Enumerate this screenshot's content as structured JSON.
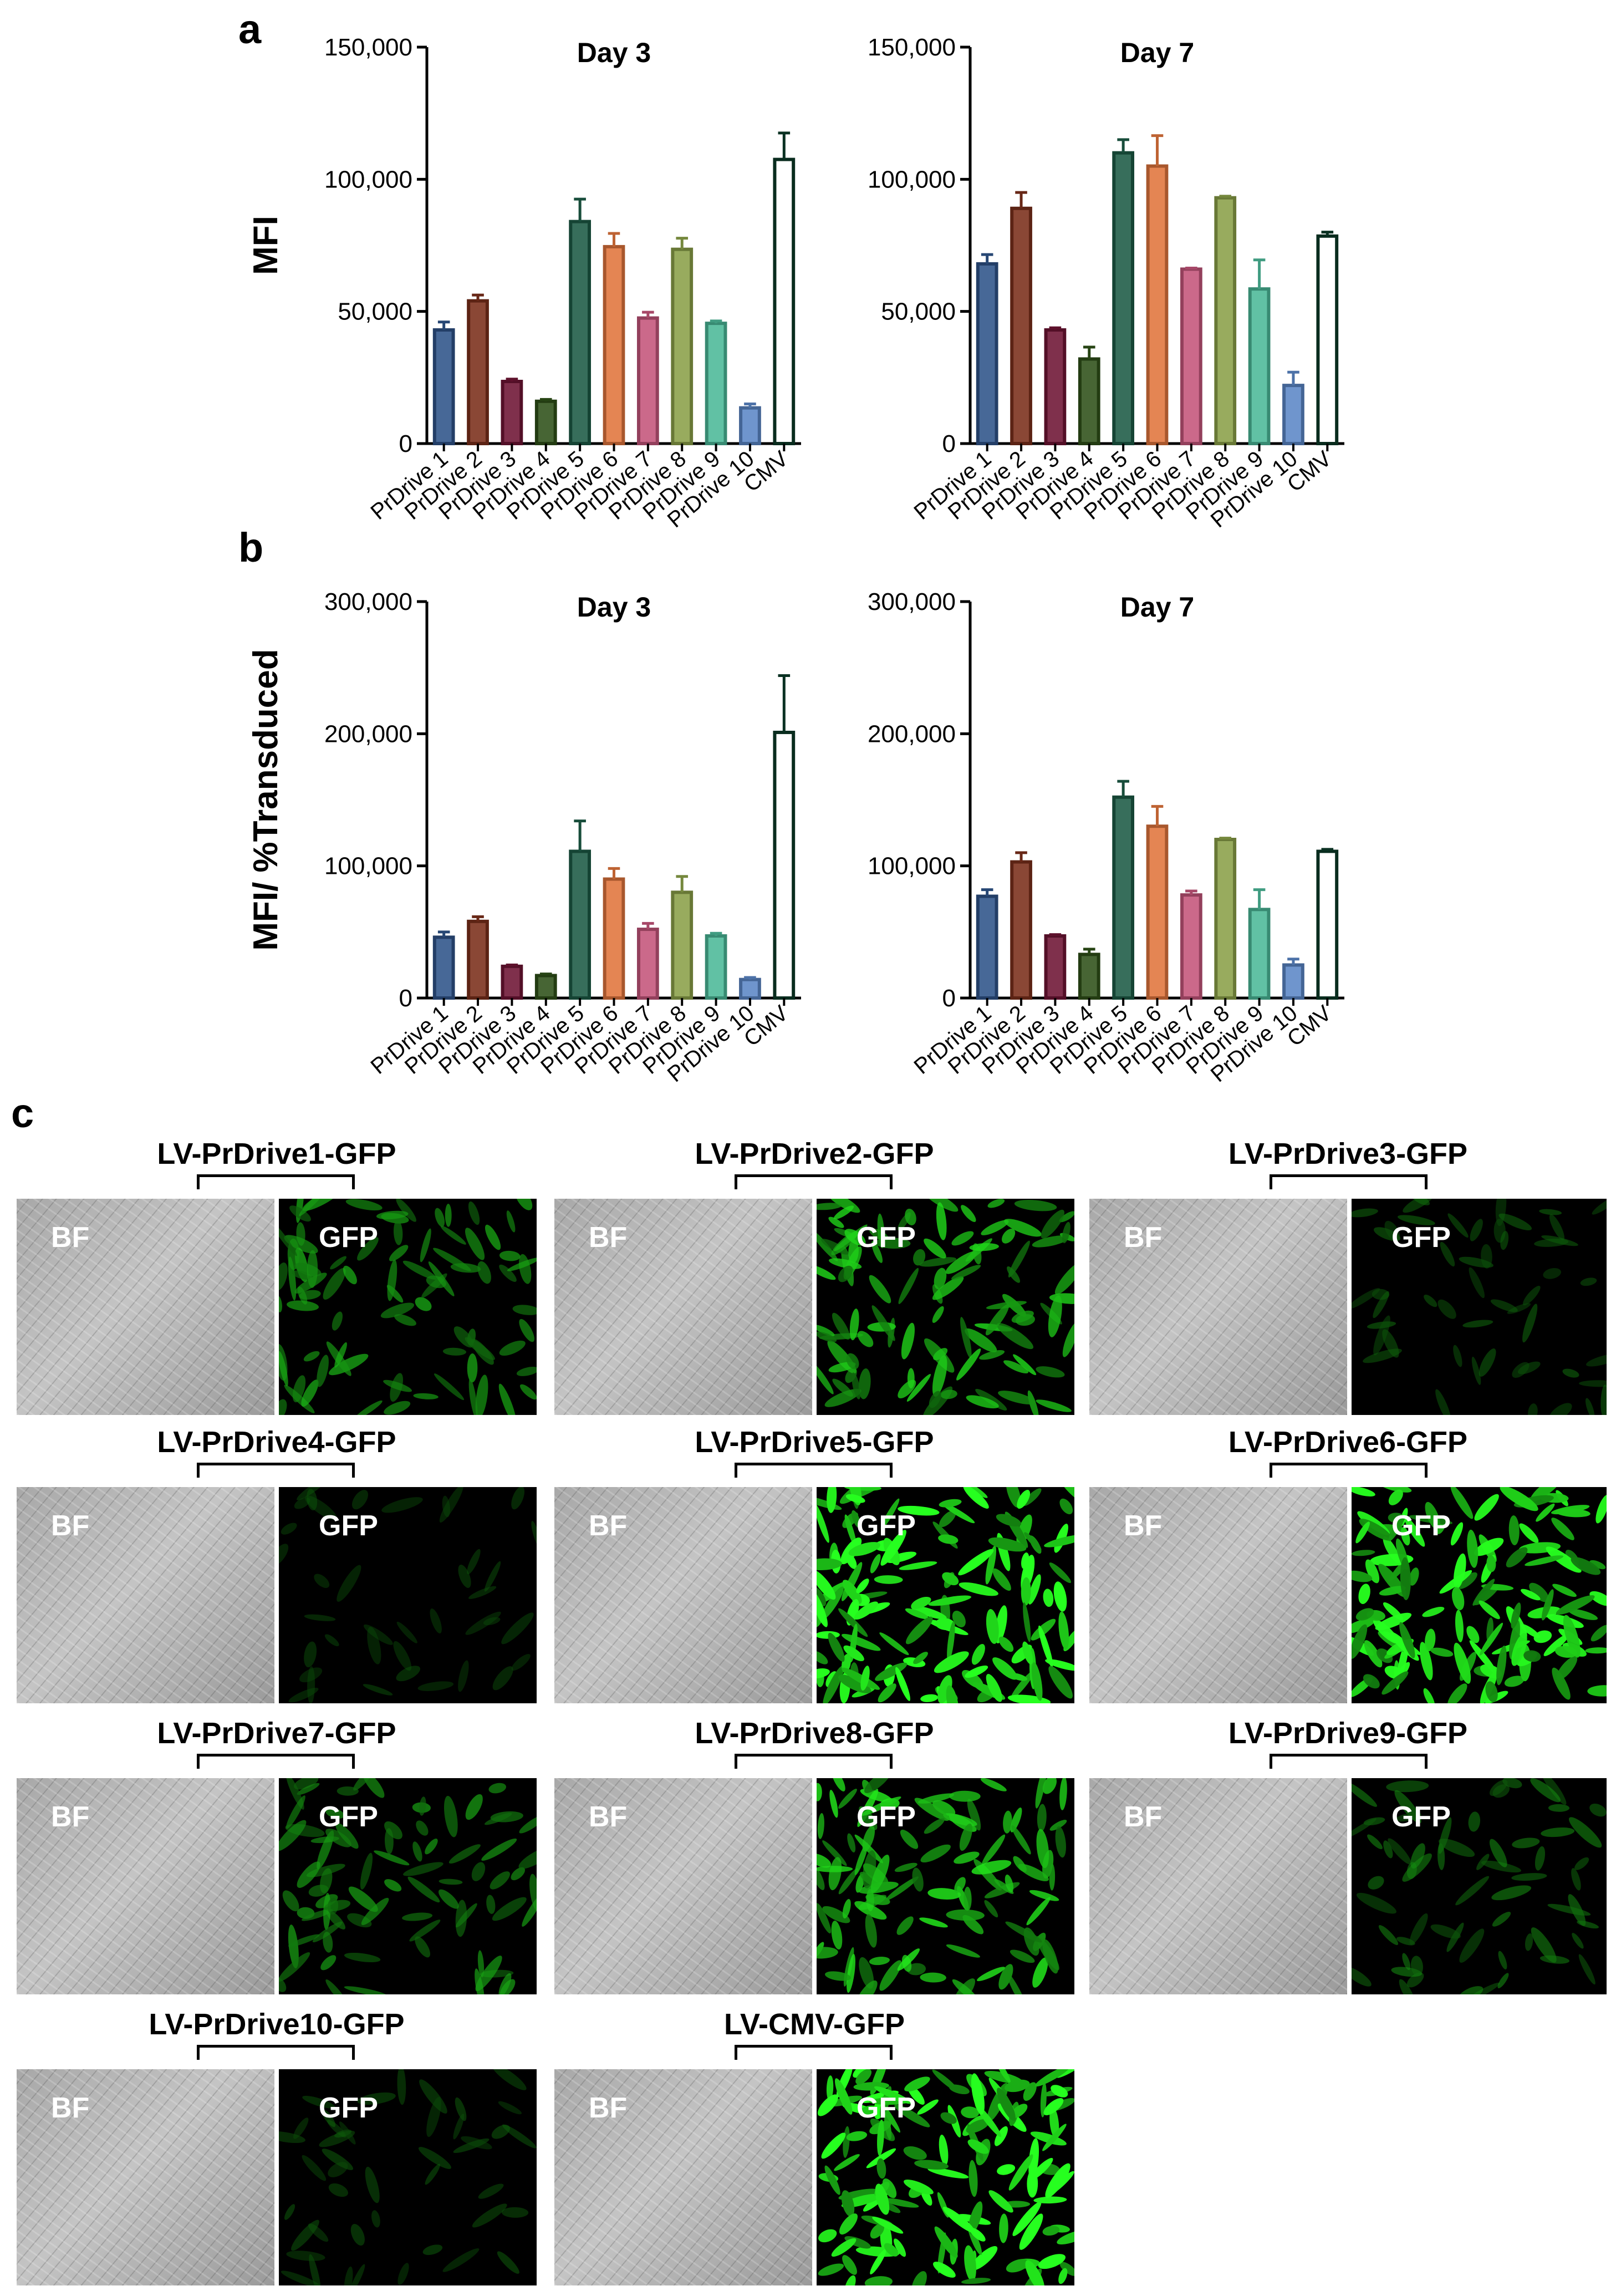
{
  "panels": {
    "a": "a",
    "b": "b",
    "c": "c"
  },
  "chart_data": [
    {
      "id": "a-day3",
      "type": "bar",
      "title": "Day 3",
      "ylabel": "MFI",
      "categories": [
        "PrDrive 1",
        "PrDrive 2",
        "PrDrive 3",
        "PrDrive 4",
        "PrDrive 5",
        "PrDrive 6",
        "PrDrive 7",
        "PrDrive 8",
        "PrDrive 9",
        "PrDrive 10",
        "CMV"
      ],
      "values": [
        43000,
        54000,
        23500,
        16000,
        84000,
        74500,
        47500,
        73500,
        45500,
        13500,
        107500
      ],
      "errors": [
        3000,
        2200,
        900,
        700,
        8500,
        5000,
        2200,
        4200,
        900,
        1500,
        10000
      ],
      "ylim": [
        0,
        150000
      ],
      "yticks": [
        0,
        50000,
        100000,
        150000
      ],
      "ytick_labels": [
        "0",
        "50,000",
        "100,000",
        "150,000"
      ]
    },
    {
      "id": "a-day7",
      "type": "bar",
      "title": "Day 7",
      "ylabel": "",
      "categories": [
        "PrDrive 1",
        "PrDrive 2",
        "PrDrive 3",
        "PrDrive 4",
        "PrDrive 5",
        "PrDrive 6",
        "PrDrive 7",
        "PrDrive 8",
        "PrDrive 9",
        "PrDrive 10",
        "CMV"
      ],
      "values": [
        68000,
        89000,
        43000,
        32000,
        110000,
        105000,
        66000,
        93000,
        58500,
        22000,
        78500
      ],
      "errors": [
        3500,
        6000,
        800,
        4500,
        5000,
        11500,
        400,
        600,
        11000,
        5000,
        1500
      ],
      "ylim": [
        0,
        150000
      ],
      "yticks": [
        0,
        50000,
        100000,
        150000
      ],
      "ytick_labels": [
        "0",
        "50,000",
        "100,000",
        "150,000"
      ]
    },
    {
      "id": "b-day3",
      "type": "bar",
      "title": "Day 3",
      "ylabel": "MFI/ %Transduced",
      "categories": [
        "PrDrive 1",
        "PrDrive 2",
        "PrDrive 3",
        "PrDrive 4",
        "PrDrive 5",
        "PrDrive 6",
        "PrDrive 7",
        "PrDrive 8",
        "PrDrive 9",
        "PrDrive 10",
        "CMV"
      ],
      "values": [
        46000,
        58000,
        24000,
        17000,
        111000,
        90000,
        52000,
        80000,
        47000,
        14000,
        201000
      ],
      "errors": [
        4000,
        3500,
        1000,
        1200,
        23000,
        8000,
        4500,
        12000,
        2000,
        1500,
        43000
      ],
      "ylim": [
        0,
        300000
      ],
      "yticks": [
        0,
        100000,
        200000,
        300000
      ],
      "ytick_labels": [
        "0",
        "100,000",
        "200,000",
        "300,000"
      ]
    },
    {
      "id": "b-day7",
      "type": "bar",
      "title": "Day 7",
      "ylabel": "",
      "categories": [
        "PrDrive 1",
        "PrDrive 2",
        "PrDrive 3",
        "PrDrive 4",
        "PrDrive 5",
        "PrDrive 6",
        "PrDrive 7",
        "PrDrive 8",
        "PrDrive 9",
        "PrDrive 10",
        "CMV"
      ],
      "values": [
        77000,
        103000,
        47000,
        33000,
        152000,
        130000,
        78000,
        120000,
        67000,
        25000,
        111000
      ],
      "errors": [
        5000,
        7000,
        1000,
        4000,
        12000,
        15000,
        3000,
        1000,
        15000,
        4500,
        1500
      ],
      "ylim": [
        0,
        300000
      ],
      "yticks": [
        0,
        100000,
        200000,
        300000
      ],
      "ytick_labels": [
        "0",
        "100,000",
        "200,000",
        "300,000"
      ]
    }
  ],
  "colors": [
    "#2e5389",
    "#7a2e1a",
    "#6e1434",
    "#2e5018",
    "#1c5a45",
    "#e0743c",
    "#c4557a",
    "#8aa048",
    "#4bb898",
    "#5b86c6",
    "#0c3a28"
  ],
  "micrographs": [
    {
      "title": "LV-PrDrive1-GFP",
      "bf": "BF",
      "gfp": "GFP",
      "gfp_intensity": 0.55
    },
    {
      "title": "LV-PrDrive2-GFP",
      "bf": "BF",
      "gfp": "GFP",
      "gfp_intensity": 0.7
    },
    {
      "title": "LV-PrDrive3-GFP",
      "bf": "BF",
      "gfp": "GFP",
      "gfp_intensity": 0.25
    },
    {
      "title": "LV-PrDrive4-GFP",
      "bf": "BF",
      "gfp": "GFP",
      "gfp_intensity": 0.15
    },
    {
      "title": "LV-PrDrive5-GFP",
      "bf": "BF",
      "gfp": "GFP",
      "gfp_intensity": 1.0
    },
    {
      "title": "LV-PrDrive6-GFP",
      "bf": "BF",
      "gfp": "GFP",
      "gfp_intensity": 0.95
    },
    {
      "title": "LV-PrDrive7-GFP",
      "bf": "BF",
      "gfp": "GFP",
      "gfp_intensity": 0.5
    },
    {
      "title": "LV-PrDrive8-GFP",
      "bf": "BF",
      "gfp": "GFP",
      "gfp_intensity": 0.75
    },
    {
      "title": "LV-PrDrive9-GFP",
      "bf": "BF",
      "gfp": "GFP",
      "gfp_intensity": 0.35
    },
    {
      "title": "LV-PrDrive10-GFP",
      "bf": "BF",
      "gfp": "GFP",
      "gfp_intensity": 0.2
    },
    {
      "title": "LV-CMV-GFP",
      "bf": "BF",
      "gfp": "GFP",
      "gfp_intensity": 1.0
    }
  ]
}
